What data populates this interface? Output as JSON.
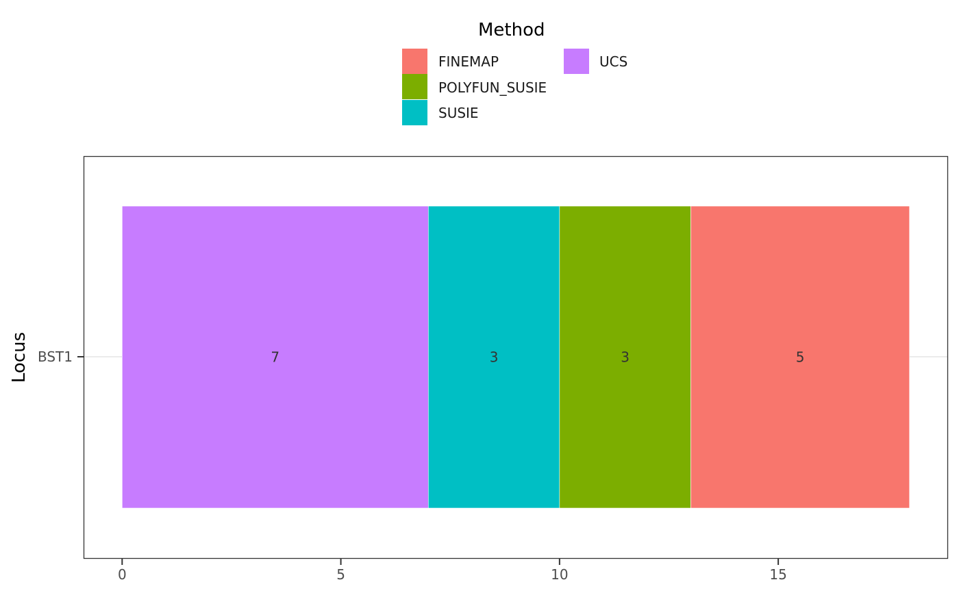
{
  "chart_data": {
    "type": "bar",
    "orientation": "horizontal",
    "stacked": true,
    "categories": [
      "BST1"
    ],
    "series": [
      {
        "name": "UCS",
        "values": [
          7
        ],
        "color": "#C77CFF"
      },
      {
        "name": "SUSIE",
        "values": [
          3
        ],
        "color": "#00BFC4"
      },
      {
        "name": "POLYFUN_SUSIE",
        "values": [
          3
        ],
        "color": "#7CAE00"
      },
      {
        "name": "FINEMAP",
        "values": [
          5
        ],
        "color": "#F8766D"
      }
    ],
    "data_labels": [
      "7",
      "3",
      "3",
      "5"
    ],
    "legend": {
      "title": "Method",
      "position": "top",
      "entries": [
        "FINEMAP",
        "POLYFUN_SUSIE",
        "SUSIE",
        "UCS"
      ]
    },
    "xlabel": "",
    "ylabel": "Locus",
    "xlim": [
      -0.874,
      18.874
    ],
    "xticks": [
      0,
      5,
      10,
      15
    ],
    "xtick_labels": [
      "0",
      "5",
      "10",
      "15"
    ],
    "ytick_labels": [
      "BST1"
    ],
    "grid": true
  }
}
